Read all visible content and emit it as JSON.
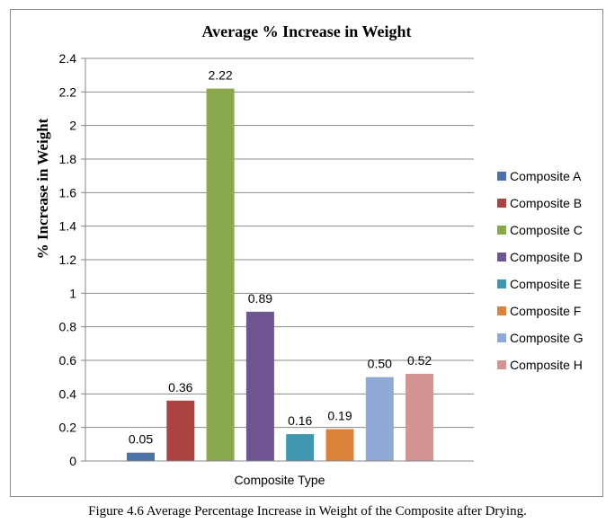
{
  "chart_data": {
    "type": "bar",
    "title": "Average % Increase in Weight",
    "xlabel": "Composite Type",
    "ylabel": "% Increase in Weight",
    "ylim": [
      0,
      2.4
    ],
    "yticks": [
      "0",
      "0.2",
      "0.4",
      "0.6",
      "0.8",
      "1",
      "1.2",
      "1.4",
      "1.6",
      "1.8",
      "2",
      "2.2",
      "2.4"
    ],
    "grid": true,
    "legend_position": "right",
    "series": [
      {
        "name": "Composite A",
        "value": 0.05,
        "label": "0.05",
        "color": "#4a72a8"
      },
      {
        "name": "Composite B",
        "value": 0.36,
        "label": "0.36",
        "color": "#ab4441"
      },
      {
        "name": "Composite C",
        "value": 2.22,
        "label": "2.22",
        "color": "#8aa94c"
      },
      {
        "name": "Composite D",
        "value": 0.89,
        "label": "0.89",
        "color": "#6f5592"
      },
      {
        "name": "Composite E",
        "value": 0.16,
        "label": "0.16",
        "color": "#3e97ae"
      },
      {
        "name": "Composite F",
        "value": 0.19,
        "label": "0.19",
        "color": "#dc833b"
      },
      {
        "name": "Composite G",
        "value": 0.5,
        "label": "0.50",
        "color": "#91a9d5"
      },
      {
        "name": "Composite H",
        "value": 0.52,
        "label": "0.52",
        "color": "#d49493"
      }
    ]
  },
  "caption": "Figure 4.6 Average Percentage Increase in Weight of the Composite after Drying."
}
